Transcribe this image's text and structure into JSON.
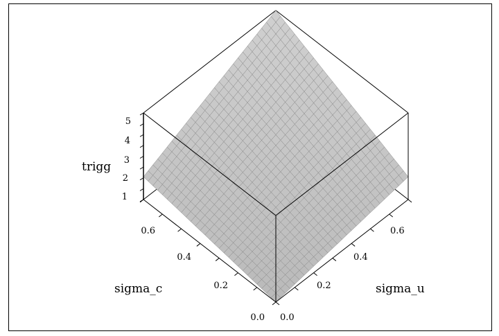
{
  "chart_data": {
    "type": "surface3d",
    "title": "",
    "x_axis": {
      "label": "sigma_u",
      "range": [
        0.0,
        0.7
      ],
      "ticks": [
        "0.0",
        "0.2",
        "0.4",
        "0.6"
      ]
    },
    "y_axis": {
      "label": "sigma_c",
      "range": [
        0.0,
        0.7
      ],
      "ticks": [
        "0.0",
        "0.2",
        "0.4",
        "0.6"
      ]
    },
    "z_axis": {
      "label": "trigg",
      "range": [
        1,
        5
      ],
      "ticks": [
        "1",
        "2",
        "3",
        "4",
        "5"
      ]
    },
    "grid": true,
    "surface_color": "#c8c8c8",
    "mesh_color": "#888888",
    "corner_values": [
      {
        "sigma_u": 0.0,
        "sigma_c": 0.0,
        "trigg": 1.0
      },
      {
        "sigma_u": 0.7,
        "sigma_c": 0.0,
        "trigg": 2.05
      },
      {
        "sigma_u": 0.0,
        "sigma_c": 0.7,
        "trigg": 2.05
      },
      {
        "sigma_u": 0.7,
        "sigma_c": 0.7,
        "trigg": 5.0
      }
    ]
  }
}
